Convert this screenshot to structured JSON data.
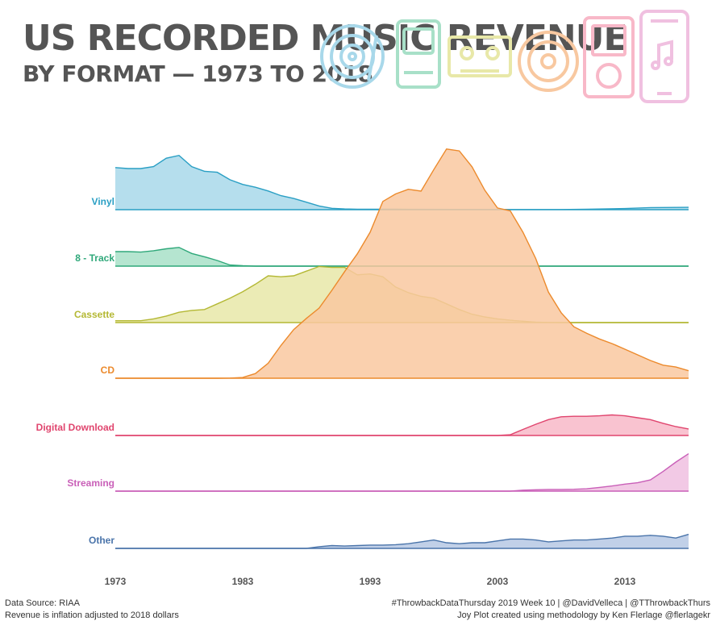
{
  "header": {
    "title": "US RECORDED MUSIC REVENUE",
    "subtitle": "BY FORMAT — 1973 TO 2018"
  },
  "decor": {
    "icons": [
      "vinyl-record-icon",
      "8-track-cartridge-icon",
      "cassette-tape-icon",
      "compact-disc-icon",
      "digital-music-player-icon",
      "smartphone-music-icon"
    ],
    "icon_colors": [
      "#a8d8ea",
      "#a8e0c8",
      "#e8e8a8",
      "#f8c8a0",
      "#f8b8c8",
      "#f0c0e0"
    ]
  },
  "footer": {
    "source": "Data Source: RIAA",
    "note": "Revenue is inflation adjusted to 2018 dollars",
    "credit_line1": "#ThrowbackDataThursday 2019 Week 10 | @DavidVelleca | @TThrowbackThurs",
    "credit_line2": "Joy Plot created using methodology by Ken Flerlage @flerlagekr"
  },
  "chart_data": {
    "type": "area",
    "variant": "joy-plot",
    "x_ticks": [
      1973,
      1983,
      1993,
      2003,
      2013
    ],
    "xlim": [
      1973,
      2018
    ],
    "y_unit": "relative revenue (inflation adjusted)",
    "series": [
      {
        "name": "Vinyl",
        "color": "#2a9fc4",
        "fill": "#a8d8ea",
        "points": [
          [
            1973,
            4.5
          ],
          [
            1974,
            4.4
          ],
          [
            1975,
            4.4
          ],
          [
            1976,
            4.6
          ],
          [
            1977,
            5.5
          ],
          [
            1978,
            5.8
          ],
          [
            1979,
            4.6
          ],
          [
            1980,
            4.1
          ],
          [
            1981,
            4.0
          ],
          [
            1982,
            3.2
          ],
          [
            1983,
            2.7
          ],
          [
            1984,
            2.4
          ],
          [
            1985,
            2.0
          ],
          [
            1986,
            1.5
          ],
          [
            1987,
            1.2
          ],
          [
            1988,
            0.8
          ],
          [
            1989,
            0.4
          ],
          [
            1990,
            0.15
          ],
          [
            1991,
            0.08
          ],
          [
            1992,
            0.05
          ],
          [
            1993,
            0.05
          ],
          [
            1995,
            0.04
          ],
          [
            2000,
            0.03
          ],
          [
            2005,
            0.02
          ],
          [
            2008,
            0.02
          ],
          [
            2010,
            0.05
          ],
          [
            2013,
            0.12
          ],
          [
            2015,
            0.22
          ],
          [
            2018,
            0.25
          ]
        ]
      },
      {
        "name": "8 - Track",
        "color": "#2fa87a",
        "fill": "#a8e0c8",
        "points": [
          [
            1973,
            1.55
          ],
          [
            1974,
            1.55
          ],
          [
            1975,
            1.5
          ],
          [
            1976,
            1.65
          ],
          [
            1977,
            1.85
          ],
          [
            1978,
            2.0
          ],
          [
            1979,
            1.35
          ],
          [
            1980,
            1.0
          ],
          [
            1981,
            0.6
          ],
          [
            1982,
            0.12
          ],
          [
            1983,
            0.04
          ],
          [
            1984,
            0.0
          ],
          [
            2018,
            0.0
          ]
        ]
      },
      {
        "name": "Cassette",
        "color": "#b4b834",
        "fill": "#e8e8a8",
        "points": [
          [
            1973,
            0.2
          ],
          [
            1974,
            0.2
          ],
          [
            1975,
            0.2
          ],
          [
            1976,
            0.4
          ],
          [
            1977,
            0.7
          ],
          [
            1978,
            1.1
          ],
          [
            1979,
            1.3
          ],
          [
            1980,
            1.4
          ],
          [
            1981,
            2.0
          ],
          [
            1982,
            2.6
          ],
          [
            1983,
            3.3
          ],
          [
            1984,
            4.1
          ],
          [
            1985,
            5.0
          ],
          [
            1986,
            4.9
          ],
          [
            1987,
            5.0
          ],
          [
            1988,
            5.5
          ],
          [
            1989,
            6.0
          ],
          [
            1990,
            5.9
          ],
          [
            1991,
            5.9
          ],
          [
            1992,
            5.1
          ],
          [
            1993,
            5.2
          ],
          [
            1994,
            4.9
          ],
          [
            1995,
            3.8
          ],
          [
            1996,
            3.2
          ],
          [
            1997,
            2.8
          ],
          [
            1998,
            2.6
          ],
          [
            1999,
            2.0
          ],
          [
            2000,
            1.4
          ],
          [
            2001,
            0.9
          ],
          [
            2002,
            0.6
          ],
          [
            2003,
            0.4
          ],
          [
            2004,
            0.25
          ],
          [
            2005,
            0.15
          ],
          [
            2006,
            0.05
          ],
          [
            2007,
            0.02
          ],
          [
            2008,
            0.0
          ],
          [
            2018,
            0.0
          ]
        ]
      },
      {
        "name": "CD",
        "color": "#ec8a2c",
        "fill": "#f9c8a0",
        "points": [
          [
            1973,
            0
          ],
          [
            1981,
            0
          ],
          [
            1982,
            0.02
          ],
          [
            1983,
            0.08
          ],
          [
            1984,
            0.5
          ],
          [
            1985,
            1.6
          ],
          [
            1986,
            3.5
          ],
          [
            1987,
            5.2
          ],
          [
            1988,
            6.4
          ],
          [
            1989,
            7.5
          ],
          [
            1990,
            9.4
          ],
          [
            1991,
            11.4
          ],
          [
            1992,
            13.3
          ],
          [
            1993,
            15.6
          ],
          [
            1994,
            18.9
          ],
          [
            1995,
            19.7
          ],
          [
            1996,
            20.2
          ],
          [
            1997,
            20.0
          ],
          [
            1998,
            22.3
          ],
          [
            1999,
            24.5
          ],
          [
            2000,
            24.3
          ],
          [
            2001,
            22.6
          ],
          [
            2002,
            20.1
          ],
          [
            2003,
            18.2
          ],
          [
            2004,
            17.9
          ],
          [
            2005,
            15.6
          ],
          [
            2006,
            12.8
          ],
          [
            2007,
            9.2
          ],
          [
            2008,
            7.0
          ],
          [
            2009,
            5.5
          ],
          [
            2010,
            4.8
          ],
          [
            2011,
            4.2
          ],
          [
            2012,
            3.7
          ],
          [
            2013,
            3.1
          ],
          [
            2014,
            2.5
          ],
          [
            2015,
            1.9
          ],
          [
            2016,
            1.4
          ],
          [
            2017,
            1.2
          ],
          [
            2018,
            0.8
          ]
        ]
      },
      {
        "name": "Digital Download",
        "color": "#e0456e",
        "fill": "#f8b8c8",
        "points": [
          [
            1973,
            0
          ],
          [
            2003,
            0
          ],
          [
            2004,
            0.08
          ],
          [
            2005,
            0.65
          ],
          [
            2006,
            1.2
          ],
          [
            2007,
            1.7
          ],
          [
            2008,
            2.0
          ],
          [
            2009,
            2.05
          ],
          [
            2010,
            2.05
          ],
          [
            2011,
            2.1
          ],
          [
            2012,
            2.2
          ],
          [
            2013,
            2.1
          ],
          [
            2014,
            1.9
          ],
          [
            2015,
            1.7
          ],
          [
            2016,
            1.3
          ],
          [
            2017,
            0.95
          ],
          [
            2018,
            0.7
          ]
        ]
      },
      {
        "name": "Streaming",
        "color": "#c95fb8",
        "fill": "#f0c0e0",
        "points": [
          [
            1973,
            0
          ],
          [
            2004,
            0
          ],
          [
            2005,
            0.1
          ],
          [
            2006,
            0.15
          ],
          [
            2007,
            0.18
          ],
          [
            2008,
            0.18
          ],
          [
            2009,
            0.2
          ],
          [
            2010,
            0.25
          ],
          [
            2011,
            0.4
          ],
          [
            2012,
            0.55
          ],
          [
            2013,
            0.75
          ],
          [
            2014,
            0.9
          ],
          [
            2015,
            1.2
          ],
          [
            2016,
            2.1
          ],
          [
            2017,
            3.1
          ],
          [
            2018,
            4.0
          ]
        ]
      },
      {
        "name": "Other",
        "color": "#4a74aa",
        "fill": "#b6c8e4",
        "points": [
          [
            1973,
            0
          ],
          [
            1988,
            0
          ],
          [
            1989,
            0.18
          ],
          [
            1990,
            0.3
          ],
          [
            1991,
            0.25
          ],
          [
            1992,
            0.3
          ],
          [
            1993,
            0.35
          ],
          [
            1994,
            0.35
          ],
          [
            1995,
            0.4
          ],
          [
            1996,
            0.5
          ],
          [
            1997,
            0.7
          ],
          [
            1998,
            0.9
          ],
          [
            1999,
            0.6
          ],
          [
            2000,
            0.5
          ],
          [
            2001,
            0.6
          ],
          [
            2002,
            0.6
          ],
          [
            2003,
            0.8
          ],
          [
            2004,
            1.0
          ],
          [
            2005,
            1.0
          ],
          [
            2006,
            0.9
          ],
          [
            2007,
            0.7
          ],
          [
            2008,
            0.8
          ],
          [
            2009,
            0.9
          ],
          [
            2010,
            0.9
          ],
          [
            2011,
            1.0
          ],
          [
            2012,
            1.1
          ],
          [
            2013,
            1.3
          ],
          [
            2014,
            1.3
          ],
          [
            2015,
            1.4
          ],
          [
            2016,
            1.3
          ],
          [
            2017,
            1.1
          ],
          [
            2018,
            1.5
          ]
        ]
      }
    ]
  }
}
